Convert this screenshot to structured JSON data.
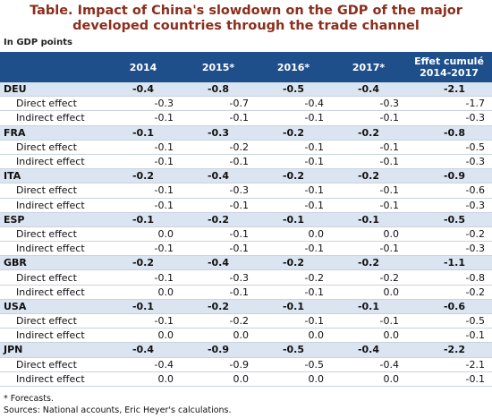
{
  "title": "Table. Impact of China's slowdown on the GDP of the major developed countries through the trade channel",
  "unit_note": "In GDP points",
  "table": {
    "header": [
      "2014",
      "2015*",
      "2016*",
      "2017*",
      "Effet cumulé 2014-2017"
    ],
    "groups": [
      {
        "country": "DEU",
        "values": [
          "-0.4",
          "-0.8",
          "-0.5",
          "-0.4",
          "-2.1"
        ],
        "rows": [
          {
            "label": "Direct effect",
            "values": [
              "-0.3",
              "-0.7",
              "-0.4",
              "-0.3",
              "-1.7"
            ]
          },
          {
            "label": "Indirect effect",
            "values": [
              "-0.1",
              "-0.1",
              "-0.1",
              "-0.1",
              "-0.3"
            ]
          }
        ]
      },
      {
        "country": "FRA",
        "values": [
          "-0.1",
          "-0.3",
          "-0.2",
          "-0.2",
          "-0.8"
        ],
        "rows": [
          {
            "label": "Direct effect",
            "values": [
              "-0.1",
              "-0.2",
              "-0.1",
              "-0.1",
              "-0.5"
            ]
          },
          {
            "label": "Indirect effect",
            "values": [
              "-0.1",
              "-0.1",
              "-0.1",
              "-0.1",
              "-0.3"
            ]
          }
        ]
      },
      {
        "country": "ITA",
        "values": [
          "-0.2",
          "-0.4",
          "-0.2",
          "-0.2",
          "-0.9"
        ],
        "rows": [
          {
            "label": "Direct effect",
            "values": [
              "-0.1",
              "-0.3",
              "-0.1",
              "-0.1",
              "-0.6"
            ]
          },
          {
            "label": "Indirect effect",
            "values": [
              "-0.1",
              "-0.1",
              "-0.1",
              "-0.1",
              "-0.3"
            ]
          }
        ]
      },
      {
        "country": "ESP",
        "values": [
          "-0.1",
          "-0.2",
          "-0.1",
          "-0.1",
          "-0.5"
        ],
        "rows": [
          {
            "label": "Direct effect",
            "values": [
              "0.0",
              "-0.1",
              "0.0",
              "0.0",
              "-0.2"
            ]
          },
          {
            "label": "Indirect effect",
            "values": [
              "-0.1",
              "-0.1",
              "-0.1",
              "-0.1",
              "-0.3"
            ]
          }
        ]
      },
      {
        "country": "GBR",
        "values": [
          "-0.2",
          "-0.4",
          "-0.2",
          "-0.2",
          "-1.1"
        ],
        "rows": [
          {
            "label": "Direct effect",
            "values": [
              "-0.1",
              "-0.3",
              "-0.2",
              "-0.2",
              "-0.8"
            ]
          },
          {
            "label": "Indirect effect",
            "values": [
              "0.0",
              "-0.1",
              "-0.1",
              "0.0",
              "-0.2"
            ]
          }
        ]
      },
      {
        "country": "USA",
        "values": [
          "-0.1",
          "-0.2",
          "-0.1",
          "-0.1",
          "-0.6"
        ],
        "rows": [
          {
            "label": "Direct effect",
            "values": [
              "-0.1",
              "-0.2",
              "-0.1",
              "-0.1",
              "-0.5"
            ]
          },
          {
            "label": "Indirect effect",
            "values": [
              "0.0",
              "0.0",
              "0.0",
              "0.0",
              "-0.1"
            ]
          }
        ]
      },
      {
        "country": "JPN",
        "values": [
          "-0.4",
          "-0.9",
          "-0.5",
          "-0.4",
          "-2.2"
        ],
        "rows": [
          {
            "label": "Direct effect",
            "values": [
              "-0.4",
              "-0.9",
              "-0.5",
              "-0.4",
              "-2.1"
            ]
          },
          {
            "label": "Indirect effect",
            "values": [
              "0.0",
              "0.0",
              "0.0",
              "0.0",
              "-0.1"
            ]
          }
        ]
      }
    ]
  },
  "footnotes": [
    "* Forecasts.",
    "Sources: National accounts, Eric Heyer's calculations."
  ]
}
